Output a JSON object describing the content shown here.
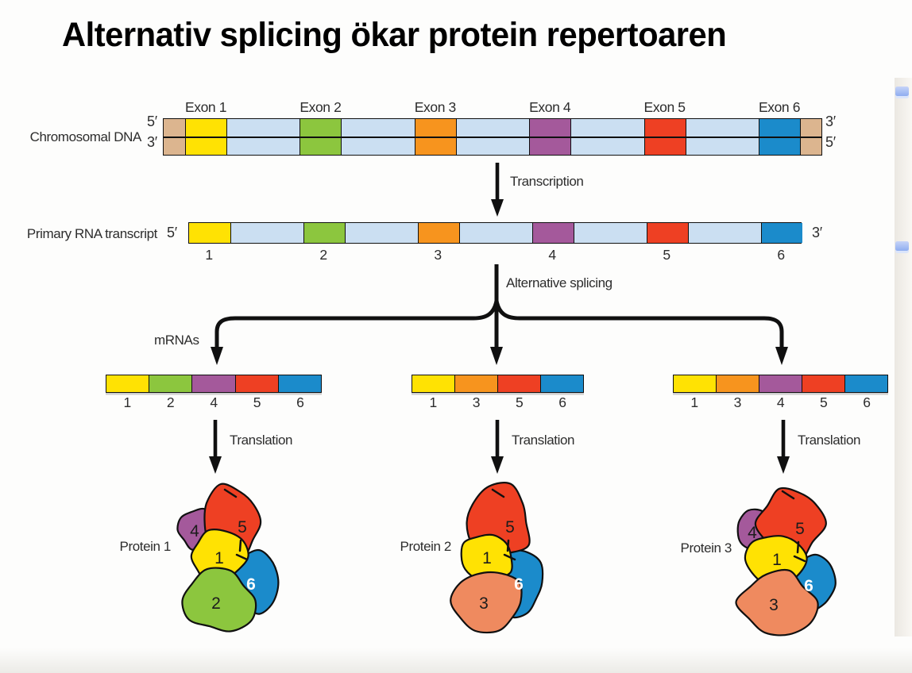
{
  "slide": {
    "title": "Alternativ splicing ökar protein repertoaren"
  },
  "diagram": {
    "dna": {
      "label": "Chromosomal DNA",
      "left_top_prime": "5′",
      "left_bottom_prime": "3′",
      "right_top_prime": "3′",
      "right_bottom_prime": "5′",
      "exon_labels": [
        "Exon 1",
        "Exon 2",
        "Exon 3",
        "Exon 4",
        "Exon 5",
        "Exon 6"
      ]
    },
    "transcription_label": "Transcription",
    "rna": {
      "label": "Primary RNA transcript",
      "left_prime": "5′",
      "right_prime": "3′",
      "exon_numbers": [
        "1",
        "2",
        "3",
        "4",
        "5",
        "6"
      ]
    },
    "splicing_label": "Alternative splicing",
    "mrnas_label": "mRNAs",
    "translation_label": "Translation",
    "mrnas": [
      {
        "exons": [
          1,
          2,
          4,
          5,
          6
        ]
      },
      {
        "exons": [
          1,
          3,
          5,
          6
        ]
      },
      {
        "exons": [
          1,
          3,
          4,
          5,
          6
        ]
      }
    ],
    "proteins": [
      {
        "label": "Protein 1",
        "domains": [
          4,
          5,
          1,
          2,
          6
        ]
      },
      {
        "label": "Protein 2",
        "domains": [
          5,
          1,
          3,
          6
        ]
      },
      {
        "label": "Protein 3",
        "domains": [
          4,
          5,
          1,
          3,
          6
        ]
      }
    ]
  },
  "colors": {
    "exon_1": "#FFE203",
    "exon_2": "#8CC63E",
    "exon_3": "#F7941E",
    "exon_4": "#A4599B",
    "exon_5": "#EE4023",
    "exon_6": "#1B8BCB",
    "intron": "#CBDFF2",
    "dna_end_cap": "#DCB58F",
    "protein_domain_3_body": "#EF8A5F",
    "outline": "#101010",
    "annotation_marker": "#8FADF0"
  },
  "right_rail": {
    "marker_count": 2
  }
}
